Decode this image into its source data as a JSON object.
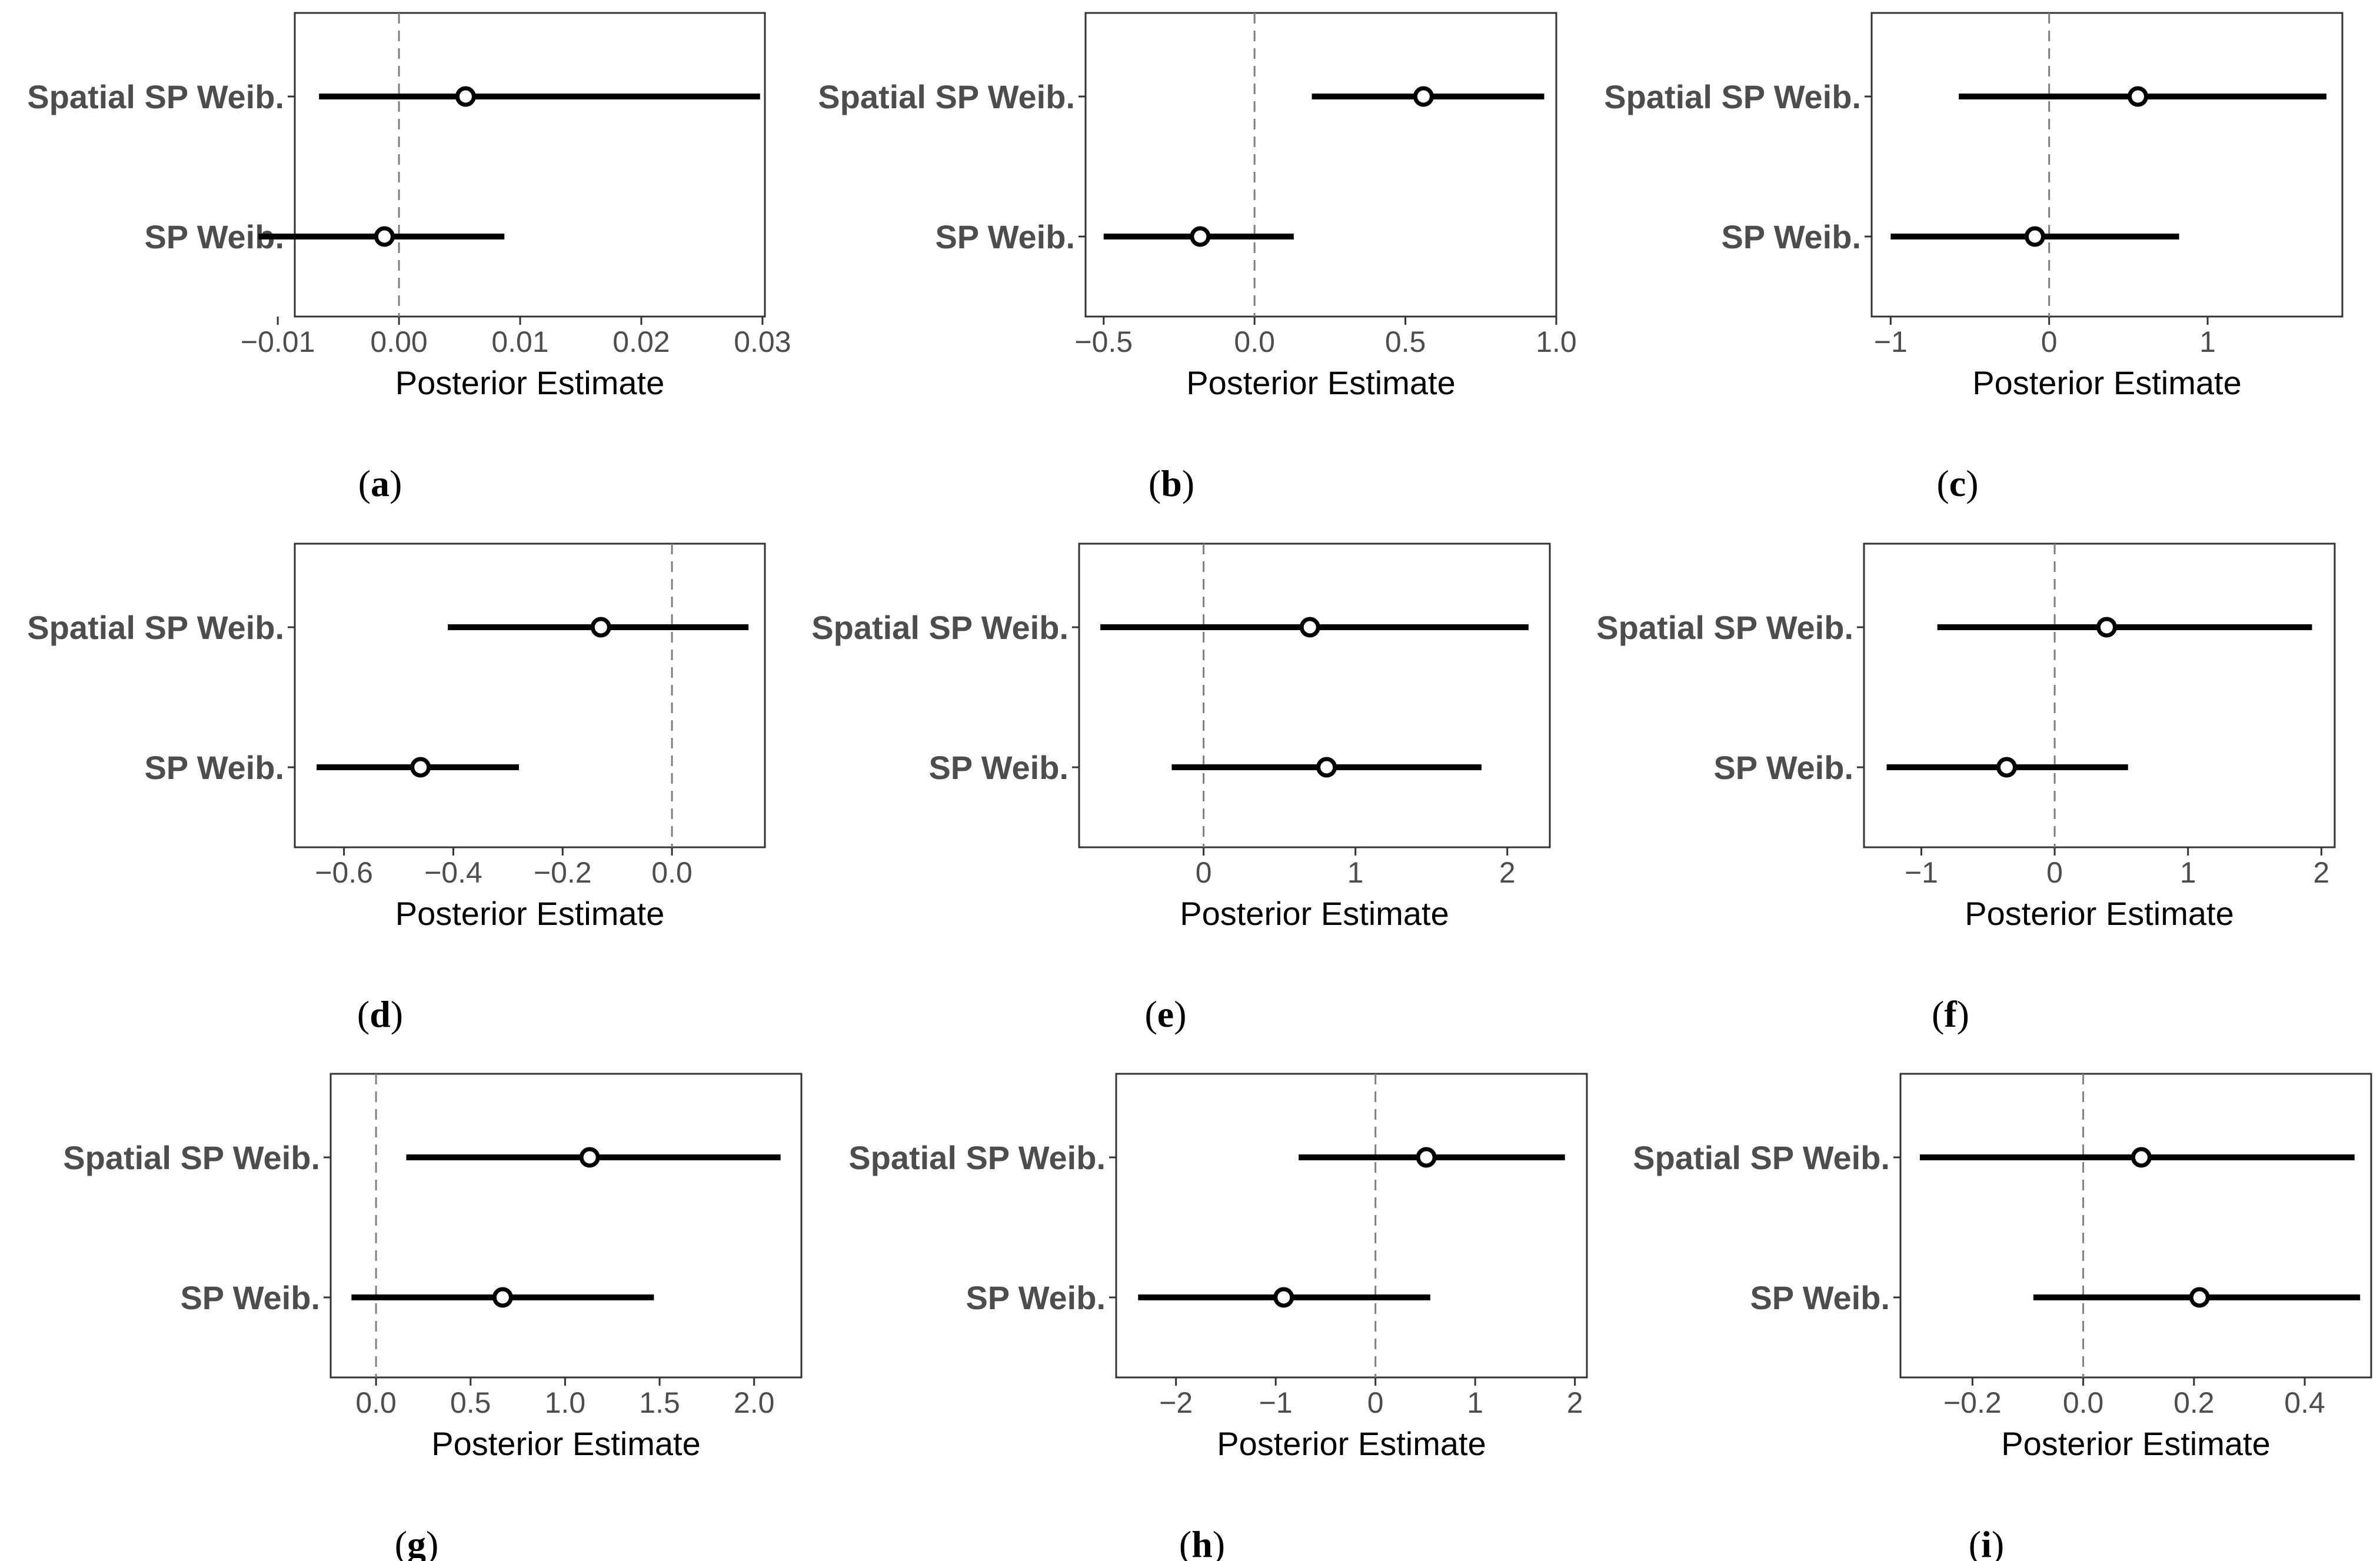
{
  "colors": {
    "interval": "#000000",
    "point_fill": "#ffffff",
    "reference_line": "#7f7f7f",
    "frame": "#333333",
    "tick_text": "#4d4d4d"
  },
  "chart_data": [
    {
      "type": "forest",
      "panel_label": "a",
      "xlabel": "Posterior Estimate",
      "categories": [
        "Spatial SP Weib.",
        "SP Weib."
      ],
      "series": [
        {
          "estimate": 0.0055,
          "lower": -0.0066,
          "upper": 0.0298
        },
        {
          "estimate": -0.0012,
          "lower": -0.0116,
          "upper": 0.0087
        }
      ],
      "xlim": [
        -0.0086,
        0.0302
      ],
      "xticks": [
        -0.01,
        0.0,
        0.01,
        0.02,
        0.03
      ],
      "xtick_labels": [
        "−0.01",
        "0.00",
        "0.01",
        "0.02",
        "0.03"
      ],
      "reference_line": 0
    },
    {
      "type": "forest",
      "panel_label": "b",
      "xlabel": "Posterior Estimate",
      "categories": [
        "Spatial SP Weib.",
        "SP Weib."
      ],
      "series": [
        {
          "estimate": 0.56,
          "lower": 0.19,
          "upper": 0.96
        },
        {
          "estimate": -0.18,
          "lower": -0.5,
          "upper": 0.13
        }
      ],
      "xlim": [
        -0.56,
        1.0
      ],
      "xticks": [
        -0.5,
        0.0,
        0.5,
        1.0
      ],
      "xtick_labels": [
        "−0.5",
        "0.0",
        "0.5",
        "1.0"
      ],
      "reference_line": 0
    },
    {
      "type": "forest",
      "panel_label": "c",
      "xlabel": "Posterior Estimate",
      "categories": [
        "Spatial SP Weib.",
        "SP Weib."
      ],
      "series": [
        {
          "estimate": 0.56,
          "lower": -0.57,
          "upper": 1.75
        },
        {
          "estimate": -0.09,
          "lower": -1.0,
          "upper": 0.82
        }
      ],
      "xlim": [
        -1.12,
        1.85
      ],
      "xticks": [
        -1,
        0,
        1
      ],
      "xtick_labels": [
        "−1",
        "0",
        "1"
      ],
      "reference_line": 0
    },
    {
      "type": "forest",
      "panel_label": "d",
      "xlabel": "Posterior Estimate",
      "categories": [
        "Spatial SP Weib.",
        " SP Weib."
      ],
      "series": [
        {
          "estimate": -0.13,
          "lower": -0.41,
          "upper": 0.14
        },
        {
          "estimate": -0.46,
          "lower": -0.65,
          "upper": -0.28
        }
      ],
      "xlim": [
        -0.69,
        0.17
      ],
      "xticks": [
        -0.6,
        -0.4,
        -0.2,
        0.0
      ],
      "xtick_labels": [
        "−0.6",
        "−0.4",
        "−0.2",
        "0.0"
      ],
      "reference_line": 0
    },
    {
      "type": "forest",
      "panel_label": "e",
      "xlabel": "Posterior Estimate",
      "categories": [
        "Spatial SP Weib.",
        "SP Weib."
      ],
      "series": [
        {
          "estimate": 0.7,
          "lower": -0.68,
          "upper": 2.14
        },
        {
          "estimate": 0.81,
          "lower": -0.21,
          "upper": 1.83
        }
      ],
      "xlim": [
        -0.82,
        2.28
      ],
      "xticks": [
        0,
        1,
        2
      ],
      "xtick_labels": [
        "0",
        "1",
        "2"
      ],
      "reference_line": 0
    },
    {
      "type": "forest",
      "panel_label": "f",
      "xlabel": "Posterior Estimate",
      "categories": [
        "Spatial SP Weib.",
        "SP Weib."
      ],
      "series": [
        {
          "estimate": 0.39,
          "lower": -0.88,
          "upper": 1.93
        },
        {
          "estimate": -0.36,
          "lower": -1.26,
          "upper": 0.55
        }
      ],
      "xlim": [
        -1.43,
        2.1
      ],
      "xticks": [
        -1,
        0,
        1,
        2
      ],
      "xtick_labels": [
        "−1",
        "0",
        "1",
        "2"
      ],
      "reference_line": 0
    },
    {
      "type": "forest",
      "panel_label": "g",
      "xlabel": "Posterior Estimate",
      "categories": [
        "Spatial SP Weib.",
        "SP Weib."
      ],
      "series": [
        {
          "estimate": 1.13,
          "lower": 0.16,
          "upper": 2.14
        },
        {
          "estimate": 0.67,
          "lower": -0.13,
          "upper": 1.47
        }
      ],
      "xlim": [
        -0.24,
        2.25
      ],
      "xticks": [
        0.0,
        0.5,
        1.0,
        1.5,
        2.0
      ],
      "xtick_labels": [
        "0.0",
        "0.5",
        "1.0",
        "1.5",
        "2.0"
      ],
      "reference_line": 0
    },
    {
      "type": "forest",
      "panel_label": "h",
      "xlabel": "Posterior Estimate",
      "categories": [
        "Spatial SP Weib.",
        "SP Weib."
      ],
      "series": [
        {
          "estimate": 0.51,
          "lower": -0.77,
          "upper": 1.9
        },
        {
          "estimate": -0.92,
          "lower": -2.38,
          "upper": 0.55
        }
      ],
      "xlim": [
        -2.6,
        2.12
      ],
      "xticks": [
        -2,
        -1,
        0,
        1,
        2
      ],
      "xtick_labels": [
        "−2",
        "−1",
        "0",
        "1",
        "2"
      ],
      "reference_line": 0
    },
    {
      "type": "forest",
      "panel_label": "i",
      "xlabel": "Posterior Estimate",
      "categories": [
        "Spatial SP Weib.",
        "SP Weib."
      ],
      "series": [
        {
          "estimate": 0.105,
          "lower": -0.295,
          "upper": 0.49
        },
        {
          "estimate": 0.21,
          "lower": -0.09,
          "upper": 0.5
        }
      ],
      "xlim": [
        -0.33,
        0.52
      ],
      "xticks": [
        -0.2,
        0.0,
        0.2,
        0.4
      ],
      "xtick_labels": [
        "−0.2",
        "0.0",
        "0.2",
        "0.4"
      ],
      "reference_line": 0
    }
  ]
}
